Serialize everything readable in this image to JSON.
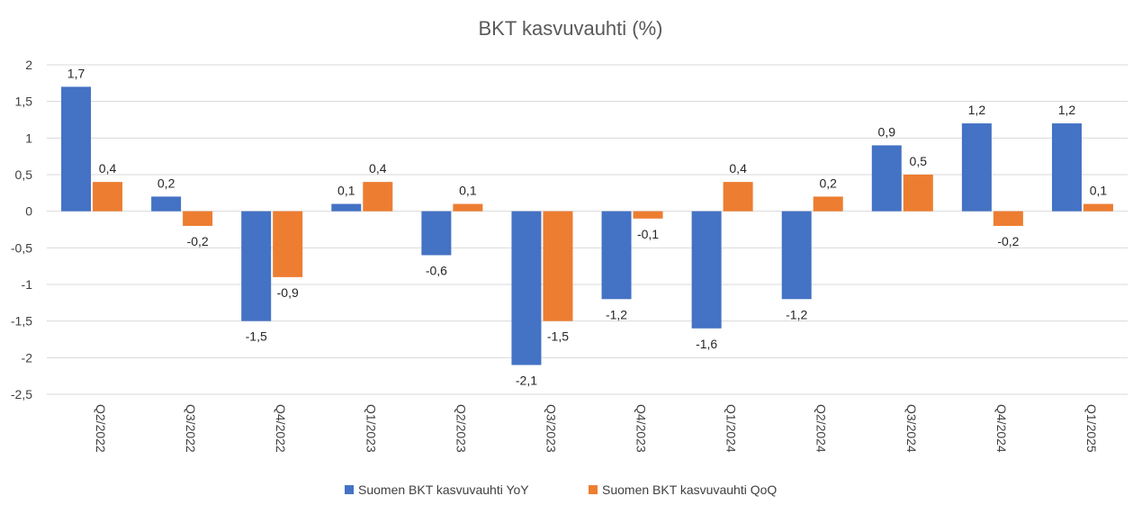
{
  "chart_data": {
    "type": "bar",
    "title": "BKT kasvuvauhti (%)",
    "xlabel": "",
    "ylabel": "",
    "ylim": [
      -2.5,
      2
    ],
    "yticks": [
      2,
      1.5,
      1,
      0.5,
      0,
      -0.5,
      -1,
      -1.5,
      -2,
      -2.5
    ],
    "ytick_labels": [
      "2",
      "1,5",
      "1",
      "0,5",
      "0",
      "-0,5",
      "-1",
      "-1,5",
      "-2",
      "-2,5"
    ],
    "grid": true,
    "legend_position": "bottom",
    "categories": [
      "Q2/2022",
      "Q3/2022",
      "Q4/2022",
      "Q1/2023",
      "Q2/2023",
      "Q3/2023",
      "Q4/2023",
      "Q1/2024",
      "Q2/2024",
      "Q3/2024",
      "Q4/2024",
      "Q1/2025"
    ],
    "series": [
      {
        "name": "Suomen BKT kasvuvauhti YoY",
        "color": "#4472c4",
        "values": [
          1.7,
          0.2,
          -1.5,
          0.1,
          -0.6,
          -2.1,
          -1.2,
          -1.6,
          -1.2,
          0.9,
          1.2,
          1.2
        ],
        "labels": [
          "1,7",
          "0,2",
          "-1,5",
          "0,1",
          "-0,6",
          "-2,1",
          "-1,2",
          "-1,6",
          "-1,2",
          "0,9",
          "1,2",
          "1,2"
        ]
      },
      {
        "name": "Suomen BKT kasvuvauhti QoQ",
        "color": "#ed7d31",
        "values": [
          0.4,
          -0.2,
          -0.9,
          0.4,
          0.1,
          -1.5,
          -0.1,
          0.4,
          0.2,
          0.5,
          -0.2,
          0.1
        ],
        "labels": [
          "0,4",
          "-0,2",
          "-0,9",
          "0,4",
          "0,1",
          "-1,5",
          "-0,1",
          "0,4",
          "0,2",
          "0,5",
          "-0,2",
          "0,1"
        ]
      }
    ]
  }
}
